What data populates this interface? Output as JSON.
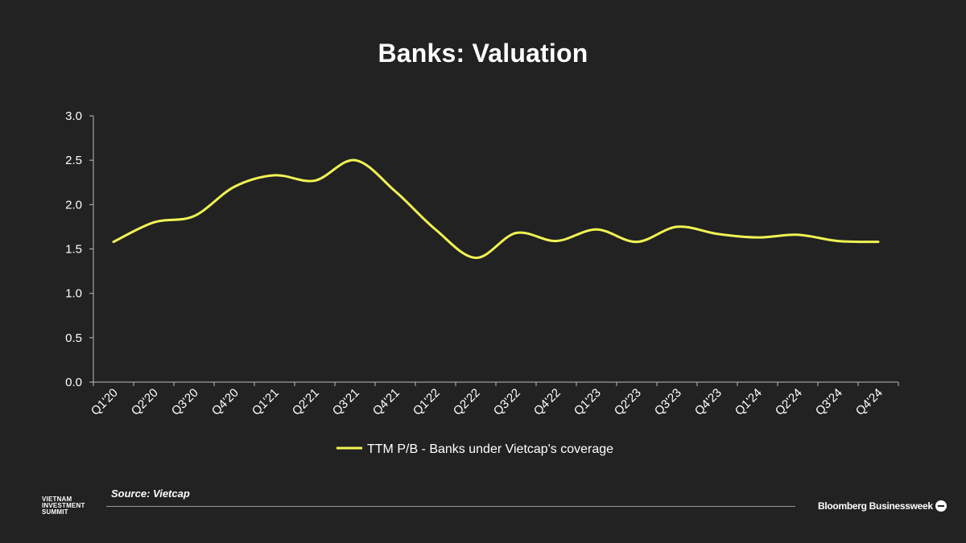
{
  "title": "Banks: Valuation",
  "source": "Source: Vietcap",
  "logos": {
    "left": [
      "VIETNAM",
      "INVESTMENT",
      "SUMMIT"
    ],
    "right": "Bloomberg Businessweek"
  },
  "colors": {
    "background": "#222222",
    "series": "#f2f553",
    "axis": "#bdbdbd",
    "text": "#ffffff"
  },
  "chart_data": {
    "type": "line",
    "title": "Banks: Valuation",
    "xlabel": "",
    "ylabel": "",
    "ylim": [
      0,
      3.0
    ],
    "yticks": [
      "0.0",
      "0.5",
      "1.0",
      "1.5",
      "2.0",
      "2.5",
      "3.0"
    ],
    "categories": [
      "Q1'20",
      "Q2'20",
      "Q3'20",
      "Q4'20",
      "Q1'21",
      "Q2'21",
      "Q3'21",
      "Q4'21",
      "Q1'22",
      "Q2'22",
      "Q3'22",
      "Q4'22",
      "Q1'23",
      "Q2'23",
      "Q3'23",
      "Q4'23",
      "Q1'24",
      "Q2'24",
      "Q3'24",
      "Q4'24"
    ],
    "grid": false,
    "legend": "bottom-center",
    "series": [
      {
        "name": "TTM P/B - Banks under Vietcap's coverage",
        "values": [
          1.58,
          1.8,
          1.87,
          2.2,
          2.33,
          2.27,
          2.5,
          2.15,
          1.72,
          1.4,
          1.68,
          1.59,
          1.72,
          1.58,
          1.75,
          1.67,
          1.63,
          1.66,
          1.59,
          1.58
        ]
      }
    ]
  }
}
